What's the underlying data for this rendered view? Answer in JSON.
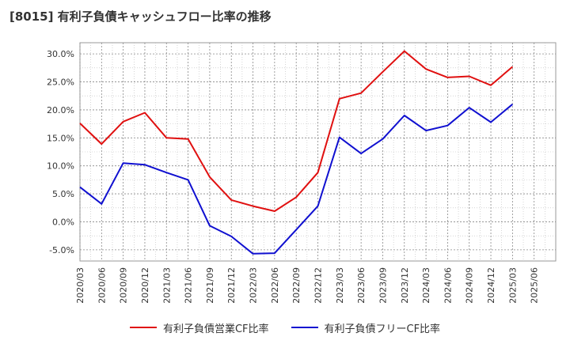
{
  "chart_data": {
    "type": "line",
    "title": "[8015]  有利子負債キャッシュフロー比率の推移",
    "xlabel": "",
    "ylabel": "",
    "categories": [
      "2020/03",
      "2020/06",
      "2020/09",
      "2020/12",
      "2021/03",
      "2021/06",
      "2021/09",
      "2021/12",
      "2022/03",
      "2022/06",
      "2022/09",
      "2022/12",
      "2023/03",
      "2023/06",
      "2023/09",
      "2023/12",
      "2024/03",
      "2024/06",
      "2024/09",
      "2024/12",
      "2025/03",
      "2025/06"
    ],
    "ylim": [
      -7,
      32
    ],
    "yticks": [
      -5,
      0,
      5,
      10,
      15,
      20,
      25,
      30
    ],
    "ytick_labels": [
      "-5.0%",
      "0.0%",
      "5.0%",
      "10.0%",
      "15.0%",
      "20.0%",
      "25.0%",
      "30.0%"
    ],
    "grid": true,
    "legend_position": "bottom",
    "series": [
      {
        "name": "有利子負債営業CF比率",
        "color": "#e01010",
        "values": [
          17.6,
          13.9,
          17.9,
          19.5,
          15.0,
          14.8,
          8.0,
          3.9,
          2.8,
          1.9,
          4.4,
          8.8,
          22.0,
          23.0,
          26.8,
          30.5,
          27.3,
          25.8,
          26.0,
          24.4,
          27.7,
          null
        ]
      },
      {
        "name": "有利子負債フリーCF比率",
        "color": "#1010d0",
        "values": [
          6.2,
          3.2,
          10.5,
          10.2,
          8.8,
          7.5,
          -0.7,
          -2.6,
          -5.7,
          -5.6,
          -1.4,
          2.8,
          15.1,
          12.2,
          14.8,
          19.0,
          16.3,
          17.2,
          20.4,
          17.8,
          21.0,
          null
        ]
      }
    ]
  }
}
